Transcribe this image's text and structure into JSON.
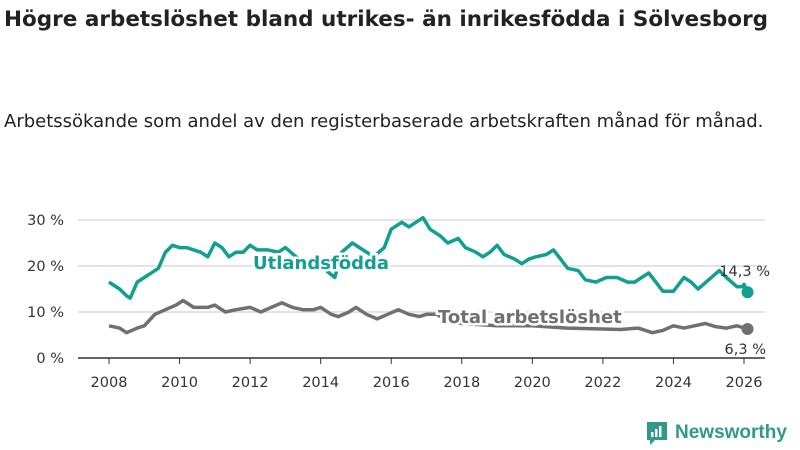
{
  "title": "Högre arbetslöshet bland utrikes- än inrikesfödda i Sölvesborg",
  "subtitle": "Arbetssökande som andel av den registerbaserade arbetskraften månad för månad.",
  "brand": "Newsworthy",
  "colors": {
    "utlandsfodda": "#11a090",
    "total": "#707070",
    "brand": "#2e9a8c"
  },
  "chart_data": {
    "type": "line",
    "ylim": [
      0,
      30
    ],
    "xlim": [
      2007.1,
      2026.9
    ],
    "y_ticks": [
      0,
      10,
      20,
      30
    ],
    "y_tick_labels": [
      "0 %",
      "10 %",
      "20 %",
      "30 %"
    ],
    "x_ticks": [
      2008,
      2010,
      2012,
      2014,
      2016,
      2018,
      2020,
      2022,
      2024,
      2026
    ],
    "x_tick_labels": [
      "2008",
      "2010",
      "2012",
      "2014",
      "2016",
      "2018",
      "2020",
      "2022",
      "2024",
      "2026"
    ],
    "grid": true,
    "series": [
      {
        "name": "Utlandsfödda",
        "end_label": "14,3 %",
        "points": [
          [
            2008.0,
            16.5
          ],
          [
            2008.3,
            15
          ],
          [
            2008.5,
            13.5
          ],
          [
            2008.6,
            13
          ],
          [
            2008.8,
            16.5
          ],
          [
            2009.0,
            17.5
          ],
          [
            2009.2,
            18.5
          ],
          [
            2009.4,
            19.5
          ],
          [
            2009.6,
            23
          ],
          [
            2009.8,
            24.5
          ],
          [
            2010.0,
            24
          ],
          [
            2010.2,
            24
          ],
          [
            2010.4,
            23.5
          ],
          [
            2010.6,
            23
          ],
          [
            2010.8,
            22
          ],
          [
            2011.0,
            25
          ],
          [
            2011.2,
            24
          ],
          [
            2011.4,
            22
          ],
          [
            2011.6,
            23
          ],
          [
            2011.8,
            23
          ],
          [
            2012.0,
            24.5
          ],
          [
            2012.2,
            23.5
          ],
          [
            2012.5,
            23.5
          ],
          [
            2012.8,
            23
          ],
          [
            2013.0,
            24
          ],
          [
            2013.3,
            22
          ],
          [
            2013.6,
            21
          ],
          [
            2014.0,
            20
          ],
          [
            2014.4,
            17.5
          ],
          [
            2014.6,
            23
          ],
          [
            2014.9,
            25
          ],
          [
            2015.2,
            23.5
          ],
          [
            2015.5,
            22
          ],
          [
            2015.8,
            24
          ],
          [
            2016.0,
            28
          ],
          [
            2016.3,
            29.5
          ],
          [
            2016.5,
            28.5
          ],
          [
            2016.7,
            29.5
          ],
          [
            2016.9,
            30.5
          ],
          [
            2017.1,
            28
          ],
          [
            2017.4,
            26.5
          ],
          [
            2017.6,
            25
          ],
          [
            2017.9,
            26
          ],
          [
            2018.1,
            24
          ],
          [
            2018.4,
            23
          ],
          [
            2018.6,
            22
          ],
          [
            2018.8,
            23
          ],
          [
            2019.0,
            24.5
          ],
          [
            2019.2,
            22.5
          ],
          [
            2019.5,
            21.5
          ],
          [
            2019.7,
            20.5
          ],
          [
            2019.9,
            21.5
          ],
          [
            2020.1,
            22
          ],
          [
            2020.4,
            22.5
          ],
          [
            2020.6,
            23.5
          ],
          [
            2020.8,
            21.5
          ],
          [
            2021.0,
            19.5
          ],
          [
            2021.3,
            19
          ],
          [
            2021.5,
            17
          ],
          [
            2021.8,
            16.5
          ],
          [
            2022.1,
            17.5
          ],
          [
            2022.4,
            17.5
          ],
          [
            2022.7,
            16.5
          ],
          [
            2022.9,
            16.5
          ],
          [
            2023.1,
            17.5
          ],
          [
            2023.3,
            18.5
          ],
          [
            2023.5,
            16.5
          ],
          [
            2023.7,
            14.5
          ],
          [
            2024.0,
            14.5
          ],
          [
            2024.3,
            17.5
          ],
          [
            2024.5,
            16.5
          ],
          [
            2024.7,
            15
          ],
          [
            2025.0,
            17
          ],
          [
            2025.3,
            19
          ],
          [
            2025.5,
            17.5
          ],
          [
            2025.8,
            15.5
          ],
          [
            2025.95,
            15.5
          ],
          [
            2026.0,
            16
          ],
          [
            2026.1,
            14.3
          ]
        ]
      },
      {
        "name": "Total arbetslöshet",
        "end_label": "6,3 %",
        "points": [
          [
            2008.0,
            7
          ],
          [
            2008.3,
            6.5
          ],
          [
            2008.5,
            5.5
          ],
          [
            2008.8,
            6.5
          ],
          [
            2009.0,
            7
          ],
          [
            2009.3,
            9.5
          ],
          [
            2009.6,
            10.5
          ],
          [
            2009.9,
            11.5
          ],
          [
            2010.1,
            12.5
          ],
          [
            2010.4,
            11
          ],
          [
            2010.8,
            11
          ],
          [
            2011.0,
            11.5
          ],
          [
            2011.3,
            10
          ],
          [
            2011.6,
            10.5
          ],
          [
            2012.0,
            11
          ],
          [
            2012.3,
            10
          ],
          [
            2012.6,
            11
          ],
          [
            2012.9,
            12
          ],
          [
            2013.2,
            11
          ],
          [
            2013.5,
            10.5
          ],
          [
            2013.8,
            10.5
          ],
          [
            2014.0,
            11
          ],
          [
            2014.3,
            9.5
          ],
          [
            2014.5,
            9
          ],
          [
            2014.8,
            10
          ],
          [
            2015.0,
            11
          ],
          [
            2015.3,
            9.5
          ],
          [
            2015.6,
            8.5
          ],
          [
            2015.9,
            9.5
          ],
          [
            2016.2,
            10.5
          ],
          [
            2016.5,
            9.5
          ],
          [
            2016.8,
            9
          ],
          [
            2017.0,
            9.5
          ],
          [
            2017.3,
            9.5
          ],
          [
            2017.6,
            8
          ],
          [
            2018.0,
            7.5
          ],
          [
            2019.0,
            7
          ],
          [
            2020.0,
            7
          ],
          [
            2021.0,
            6.5
          ],
          [
            2022.0,
            6.3
          ],
          [
            2022.5,
            6.2
          ],
          [
            2023.0,
            6.5
          ],
          [
            2023.4,
            5.5
          ],
          [
            2023.7,
            6
          ],
          [
            2024.0,
            7
          ],
          [
            2024.3,
            6.5
          ],
          [
            2024.6,
            7
          ],
          [
            2024.9,
            7.5
          ],
          [
            2025.2,
            6.8
          ],
          [
            2025.5,
            6.5
          ],
          [
            2025.8,
            7
          ],
          [
            2026.1,
            6.3
          ]
        ]
      }
    ]
  }
}
